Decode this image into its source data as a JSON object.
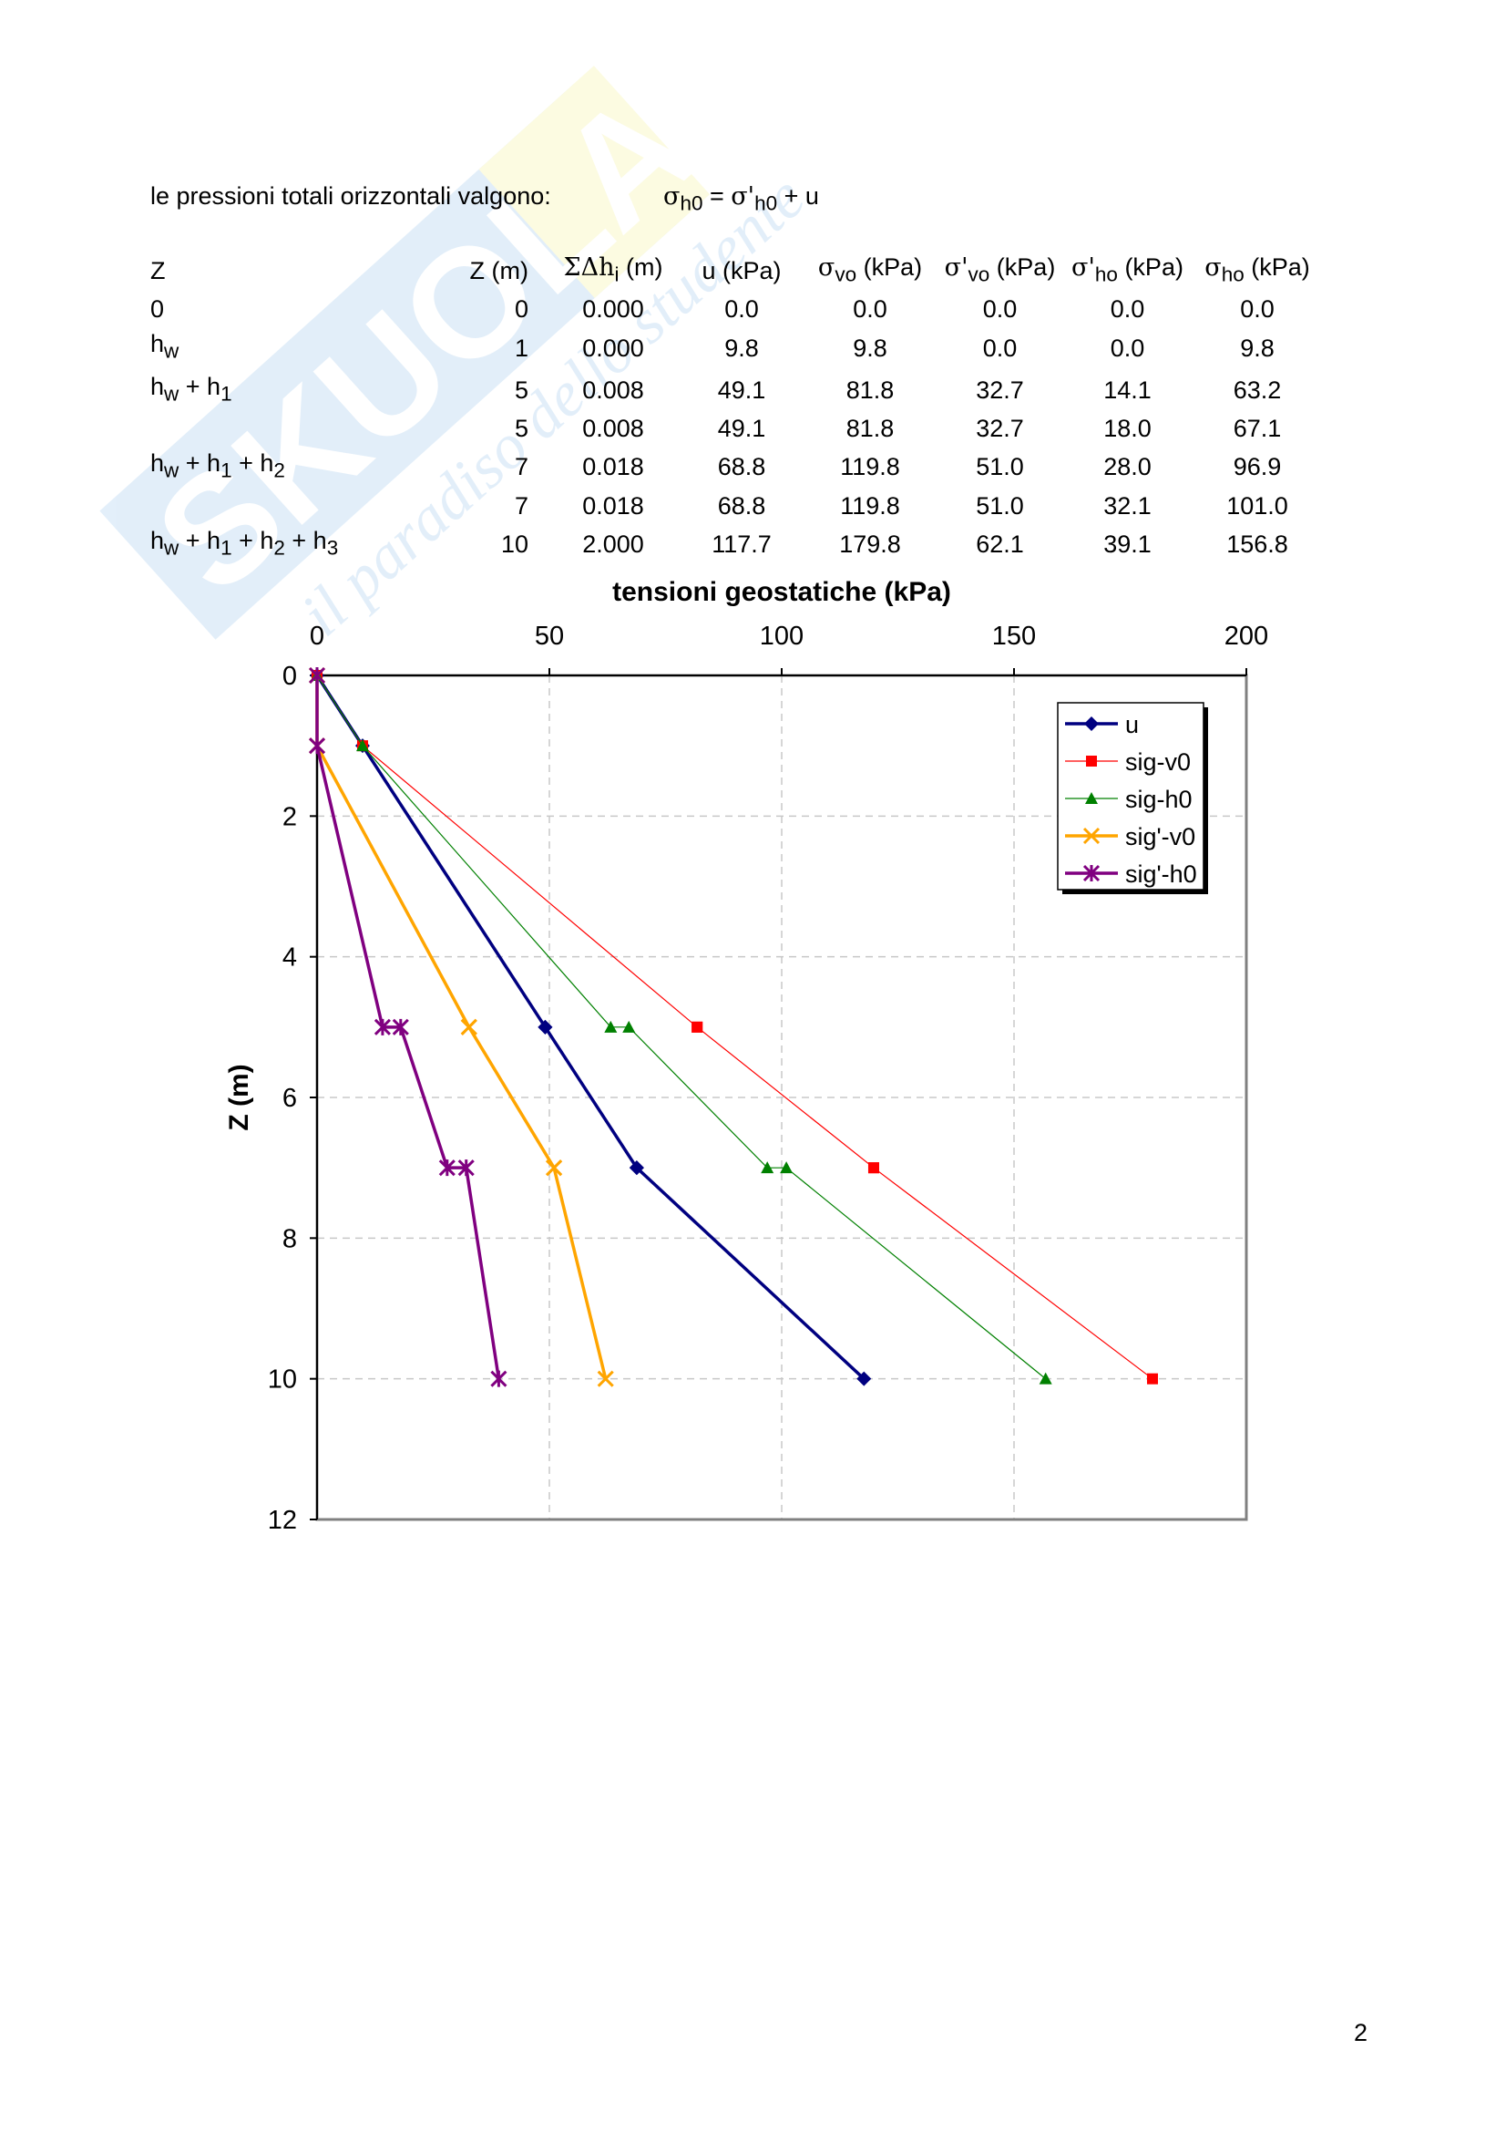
{
  "intro_text": "le pressioni totali orizzontali valgono:",
  "formula": {
    "s1": "σ",
    "sub1": "h0",
    "eq": " = ",
    "s2": "σ'",
    "sub2": "h0",
    "tail": " + u"
  },
  "table": {
    "headers": [
      {
        "text": "Z"
      },
      {
        "text": "Z (m)"
      },
      {
        "pre": "ΣΔh",
        "sub": "i",
        "post": " (m)"
      },
      {
        "text": "u (kPa)"
      },
      {
        "pre": "σ",
        "sub": "vo",
        "post": " (kPa)"
      },
      {
        "pre": "σ'",
        "sub": "vo",
        "post": " (kPa)"
      },
      {
        "pre": "σ'",
        "sub": "ho",
        "post": " (kPa)"
      },
      {
        "pre": "σ",
        "sub": "ho",
        "post": " (kPa)"
      }
    ],
    "rows": [
      {
        "label": [
          [
            "0",
            ""
          ]
        ],
        "values": [
          "0",
          "0.000",
          "0.0",
          "0.0",
          "0.0",
          "0.0",
          "0.0"
        ]
      },
      {
        "label": [
          [
            "h",
            "w"
          ]
        ],
        "values": [
          "1",
          "0.000",
          "9.8",
          "9.8",
          "0.0",
          "0.0",
          "9.8"
        ]
      },
      {
        "label": [
          [
            "h",
            "w"
          ],
          [
            " + h",
            "1"
          ]
        ],
        "values": [
          "5",
          "0.008",
          "49.1",
          "81.8",
          "32.7",
          "14.1",
          "63.2"
        ]
      },
      {
        "label": [],
        "values": [
          "5",
          "0.008",
          "49.1",
          "81.8",
          "32.7",
          "18.0",
          "67.1"
        ]
      },
      {
        "label": [
          [
            "h",
            "w"
          ],
          [
            " + h",
            "1"
          ],
          [
            " + h",
            "2"
          ]
        ],
        "values": [
          "7",
          "0.018",
          "68.8",
          "119.8",
          "51.0",
          "28.0",
          "96.9"
        ]
      },
      {
        "label": [],
        "values": [
          "7",
          "0.018",
          "68.8",
          "119.8",
          "51.0",
          "32.1",
          "101.0"
        ]
      },
      {
        "label": [
          [
            "h",
            "w"
          ],
          [
            " + h",
            "1"
          ],
          [
            " + h",
            "2"
          ],
          [
            " + h",
            "3"
          ]
        ],
        "values": [
          "10",
          "2.000",
          "117.7",
          "179.8",
          "62.1",
          "39.1",
          "156.8"
        ]
      }
    ]
  },
  "chart_data": {
    "type": "scatter",
    "title": "tensioni geostatiche (kPa)",
    "xlabel": "",
    "ylabel": "Z (m)",
    "xlim": [
      0,
      200
    ],
    "ylim": [
      0,
      12
    ],
    "y_inverted": true,
    "x_axis_position": "top",
    "xticks": [
      0,
      50,
      100,
      150,
      200
    ],
    "yticks": [
      0,
      2,
      4,
      6,
      8,
      10,
      12
    ],
    "grid": true,
    "legend_position": "top-right",
    "series": [
      {
        "name": "u",
        "color": "#000080",
        "marker": "diamond",
        "line": "thick",
        "points": [
          [
            0,
            0
          ],
          [
            9.8,
            1
          ],
          [
            49.1,
            5
          ],
          [
            49.1,
            5
          ],
          [
            68.8,
            7
          ],
          [
            68.8,
            7
          ],
          [
            117.7,
            10
          ]
        ]
      },
      {
        "name": "sig-v0",
        "color": "#ff0000",
        "marker": "square",
        "line": "thin",
        "points": [
          [
            0,
            0
          ],
          [
            9.8,
            1
          ],
          [
            81.8,
            5
          ],
          [
            81.8,
            5
          ],
          [
            119.8,
            7
          ],
          [
            119.8,
            7
          ],
          [
            179.8,
            10
          ]
        ]
      },
      {
        "name": "sig-h0",
        "color": "#008000",
        "marker": "triangle",
        "line": "thin",
        "points": [
          [
            0,
            0
          ],
          [
            9.8,
            1
          ],
          [
            63.2,
            5
          ],
          [
            67.1,
            5
          ],
          [
            96.9,
            7
          ],
          [
            101.0,
            7
          ],
          [
            156.8,
            10
          ]
        ]
      },
      {
        "name": "sig'-v0",
        "color": "#ffa500",
        "marker": "x",
        "line": "thick",
        "points": [
          [
            0,
            0
          ],
          [
            0,
            1
          ],
          [
            32.7,
            5
          ],
          [
            32.7,
            5
          ],
          [
            51.0,
            7
          ],
          [
            51.0,
            7
          ],
          [
            62.1,
            10
          ]
        ]
      },
      {
        "name": "sig'-h0",
        "color": "#800080",
        "marker": "star",
        "line": "thick",
        "points": [
          [
            0,
            0
          ],
          [
            0,
            1
          ],
          [
            14.1,
            5
          ],
          [
            18.0,
            5
          ],
          [
            28.0,
            7
          ],
          [
            32.1,
            7
          ],
          [
            39.1,
            10
          ]
        ]
      }
    ]
  },
  "page_number": "2",
  "watermark": {
    "brand": "SKUOLA.net",
    "tagline": "il paradiso dello studente"
  }
}
